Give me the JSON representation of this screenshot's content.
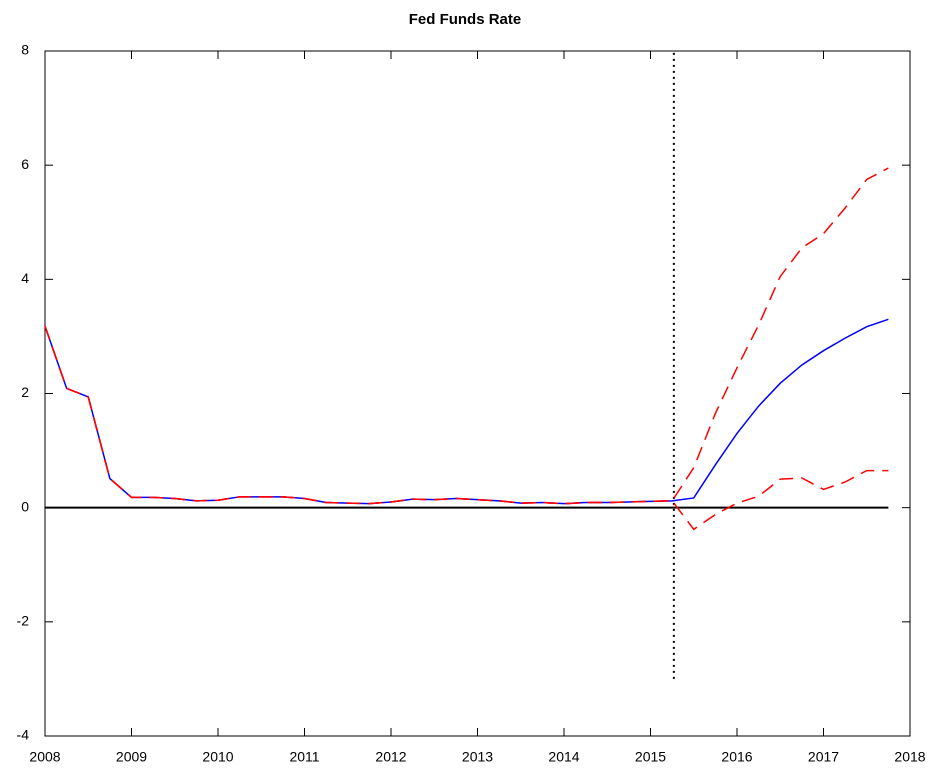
{
  "chart_data": {
    "type": "line",
    "title": "Fed Funds Rate",
    "x": [
      2008.0,
      2008.25,
      2008.5,
      2008.75,
      2009.0,
      2009.25,
      2009.5,
      2009.75,
      2010.0,
      2010.25,
      2010.5,
      2010.75,
      2011.0,
      2011.25,
      2011.5,
      2011.75,
      2012.0,
      2012.25,
      2012.5,
      2012.75,
      2013.0,
      2013.25,
      2013.5,
      2013.75,
      2014.0,
      2014.25,
      2014.5,
      2014.75,
      2015.0,
      2015.25,
      2015.5,
      2015.75,
      2016.0,
      2016.25,
      2016.5,
      2016.75,
      2017.0,
      2017.25,
      2017.5,
      2017.75
    ],
    "series": [
      {
        "color": "#0000ff",
        "dashed": false,
        "values": [
          3.18,
          2.09,
          1.94,
          0.51,
          0.18,
          0.18,
          0.16,
          0.12,
          0.13,
          0.19,
          0.19,
          0.19,
          0.16,
          0.09,
          0.08,
          0.07,
          0.1,
          0.15,
          0.14,
          0.16,
          0.14,
          0.12,
          0.08,
          0.09,
          0.07,
          0.09,
          0.09,
          0.1,
          0.11,
          0.12,
          0.17,
          0.75,
          1.3,
          1.78,
          2.18,
          2.5,
          2.75,
          2.97,
          3.17,
          3.3
        ]
      },
      {
        "color": "#ff0000",
        "dashed": true,
        "values": [
          3.18,
          2.09,
          1.94,
          0.51,
          0.18,
          0.18,
          0.16,
          0.12,
          0.13,
          0.19,
          0.19,
          0.19,
          0.16,
          0.09,
          0.08,
          0.07,
          0.1,
          0.15,
          0.14,
          0.16,
          0.14,
          0.12,
          0.08,
          0.09,
          0.07,
          0.09,
          0.09,
          0.1,
          0.11,
          0.12,
          0.7,
          1.65,
          2.45,
          3.2,
          4.05,
          4.55,
          4.8,
          5.25,
          5.75,
          5.95
        ]
      },
      {
        "color": "#ff0000",
        "dashed": true,
        "values": [
          3.18,
          2.09,
          1.94,
          0.51,
          0.18,
          0.18,
          0.16,
          0.12,
          0.13,
          0.19,
          0.19,
          0.19,
          0.16,
          0.09,
          0.08,
          0.07,
          0.1,
          0.15,
          0.14,
          0.16,
          0.14,
          0.12,
          0.08,
          0.09,
          0.07,
          0.09,
          0.09,
          0.1,
          0.11,
          0.12,
          -0.38,
          -0.12,
          0.08,
          0.2,
          0.5,
          0.52,
          0.32,
          0.45,
          0.65,
          0.65
        ]
      }
    ],
    "xlim": [
      2008,
      2018
    ],
    "xticks": [
      2008,
      2009,
      2010,
      2011,
      2012,
      2013,
      2014,
      2015,
      2016,
      2017,
      2018
    ],
    "ylim": [
      -4,
      8
    ],
    "yticks": [
      -4,
      -2,
      0,
      2,
      4,
      6,
      8
    ],
    "hline_y": 0,
    "vline_x": 2015.27,
    "vline_ymin": -3,
    "grid": false
  }
}
